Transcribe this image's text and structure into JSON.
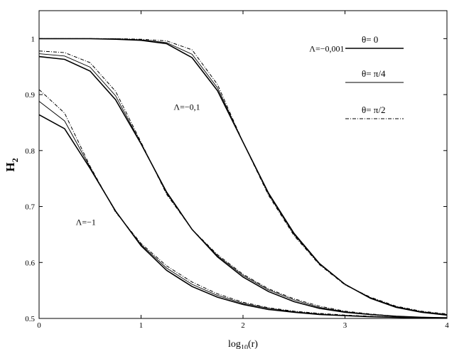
{
  "chart_data": {
    "type": "line",
    "title": "",
    "xlabel": "log10(r)",
    "xlabel_base": "log",
    "xlabel_sub": "10",
    "xlabel_tail": "(r)",
    "ylabel": "H2",
    "ylabel_base": "H",
    "ylabel_sub": "2",
    "xlim": [
      0,
      4
    ],
    "ylim": [
      0.5,
      1.05
    ],
    "xticks": [
      "0",
      "1",
      "2",
      "3",
      "4"
    ],
    "yticks": [
      "0.5",
      "0.6",
      "0.7",
      "0.8",
      "0.9",
      "1"
    ],
    "grid": false,
    "legend_position": "top-right",
    "legend": [
      {
        "label": "θ= 0",
        "style": "solid"
      },
      {
        "label": "θ= π/4",
        "style": "thin-solid"
      },
      {
        "label": "θ= π/2",
        "style": "dash-dot"
      }
    ],
    "annotations": [
      {
        "text": "Λ=−0,001",
        "x": 2.65,
        "y": 0.977
      },
      {
        "text": "Λ=−0,1",
        "x": 1.32,
        "y": 0.873
      },
      {
        "text": "Λ=−1",
        "x": 0.36,
        "y": 0.667
      }
    ],
    "x": [
      0,
      0.25,
      0.5,
      0.75,
      1.0,
      1.25,
      1.5,
      1.75,
      2.0,
      2.25,
      2.5,
      2.75,
      3.0,
      3.25,
      3.5,
      3.75,
      4.0
    ],
    "series": [
      {
        "group": "Λ=−1",
        "theta": "θ= 0",
        "style": "solid",
        "values": [
          0.864,
          0.839,
          0.768,
          0.692,
          0.63,
          0.586,
          0.557,
          0.538,
          0.525,
          0.516,
          0.511,
          0.507,
          0.505,
          0.503,
          0.502,
          0.501,
          0.501
        ]
      },
      {
        "group": "Λ=−1",
        "theta": "θ= π/4",
        "style": "thin-solid",
        "values": [
          0.888,
          0.853,
          0.77,
          0.691,
          0.632,
          0.59,
          0.561,
          0.541,
          0.527,
          0.518,
          0.512,
          0.508,
          0.505,
          0.503,
          0.502,
          0.501,
          0.501
        ]
      },
      {
        "group": "Λ=−1",
        "theta": "θ= π/2",
        "style": "dash-dot",
        "values": [
          0.909,
          0.867,
          0.772,
          0.69,
          0.634,
          0.594,
          0.565,
          0.544,
          0.529,
          0.519,
          0.513,
          0.509,
          0.506,
          0.504,
          0.502,
          0.501,
          0.501
        ]
      },
      {
        "group": "Λ=−0,1",
        "theta": "θ= 0",
        "style": "solid",
        "values": [
          0.968,
          0.963,
          0.942,
          0.891,
          0.812,
          0.726,
          0.659,
          0.61,
          0.574,
          0.548,
          0.53,
          0.518,
          0.511,
          0.507,
          0.504,
          0.502,
          0.501
        ]
      },
      {
        "group": "Λ=−0,1",
        "theta": "θ= π/4",
        "style": "thin-solid",
        "values": [
          0.973,
          0.969,
          0.949,
          0.898,
          0.813,
          0.724,
          0.659,
          0.612,
          0.577,
          0.551,
          0.533,
          0.52,
          0.512,
          0.507,
          0.504,
          0.502,
          0.501
        ]
      },
      {
        "group": "Λ=−0,1",
        "theta": "θ= π/2",
        "style": "dash-dot",
        "values": [
          0.978,
          0.975,
          0.957,
          0.906,
          0.815,
          0.722,
          0.659,
          0.614,
          0.579,
          0.553,
          0.535,
          0.522,
          0.513,
          0.508,
          0.504,
          0.502,
          0.501
        ]
      },
      {
        "group": "Λ=−0,001",
        "theta": "θ= 0",
        "style": "solid",
        "values": [
          1.0,
          1.0,
          1.0,
          0.999,
          0.997,
          0.991,
          0.966,
          0.907,
          0.815,
          0.724,
          0.652,
          0.598,
          0.561,
          0.536,
          0.52,
          0.511,
          0.506
        ]
      },
      {
        "group": "Λ=−0,001",
        "theta": "θ= π/4",
        "style": "thin-solid",
        "values": [
          1.0,
          1.0,
          1.0,
          1.0,
          0.998,
          0.993,
          0.972,
          0.912,
          0.815,
          0.722,
          0.65,
          0.597,
          0.561,
          0.537,
          0.521,
          0.512,
          0.507
        ]
      },
      {
        "group": "Λ=−0,001",
        "theta": "θ= π/2",
        "style": "dash-dot",
        "values": [
          1.0,
          1.0,
          1.0,
          1.0,
          0.999,
          0.996,
          0.98,
          0.918,
          0.815,
          0.72,
          0.648,
          0.596,
          0.56,
          0.538,
          0.522,
          0.513,
          0.508
        ]
      }
    ]
  }
}
